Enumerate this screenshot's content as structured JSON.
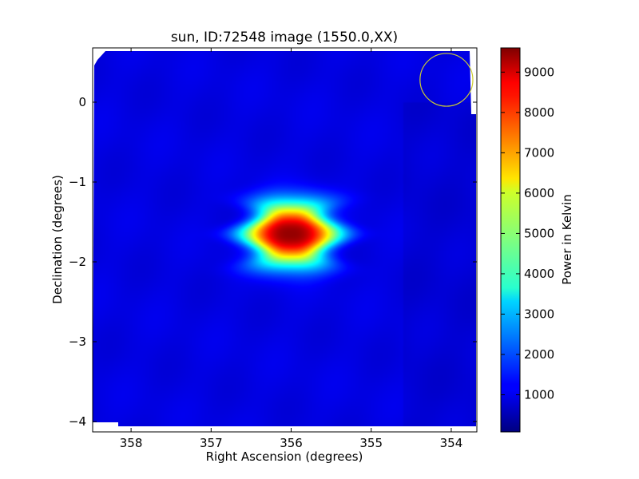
{
  "chart_data": {
    "type": "heatmap",
    "title": "sun, ID:72548 image (1550.0,XX)",
    "xlabel": "Right Ascension (degrees)",
    "ylabel": "Declination (degrees)",
    "xlim": [
      358.48,
      353.68
    ],
    "ylim": [
      -4.13,
      0.68
    ],
    "x_ticks": [
      {
        "value": 358,
        "label": "358"
      },
      {
        "value": 357,
        "label": "357"
      },
      {
        "value": 356,
        "label": "356"
      },
      {
        "value": 355,
        "label": "355"
      },
      {
        "value": 354,
        "label": "354"
      }
    ],
    "y_ticks": [
      {
        "value": 0,
        "label": "0"
      },
      {
        "value": -1,
        "label": "−1"
      },
      {
        "value": -2,
        "label": "−2"
      },
      {
        "value": -3,
        "label": "−3"
      },
      {
        "value": -4,
        "label": "−4"
      }
    ],
    "colorbar": {
      "label": "Power in Kelvin",
      "colormap": "jet",
      "range": [
        80,
        9600
      ],
      "ticks": [
        {
          "value": 1000,
          "label": "1000"
        },
        {
          "value": 2000,
          "label": "2000"
        },
        {
          "value": 3000,
          "label": "3000"
        },
        {
          "value": 4000,
          "label": "4000"
        },
        {
          "value": 5000,
          "label": "5000"
        },
        {
          "value": 6000,
          "label": "6000"
        },
        {
          "value": 7000,
          "label": "7000"
        },
        {
          "value": 8000,
          "label": "8000"
        },
        {
          "value": 9000,
          "label": "9000"
        }
      ]
    },
    "background_level": 1000,
    "source": {
      "ra": 356.0,
      "dec": -1.65,
      "peak": 9500
    },
    "beam_circle": {
      "ra": 354.06,
      "dec": 0.28,
      "radius_deg": 0.33,
      "color": "#cccc33"
    }
  }
}
